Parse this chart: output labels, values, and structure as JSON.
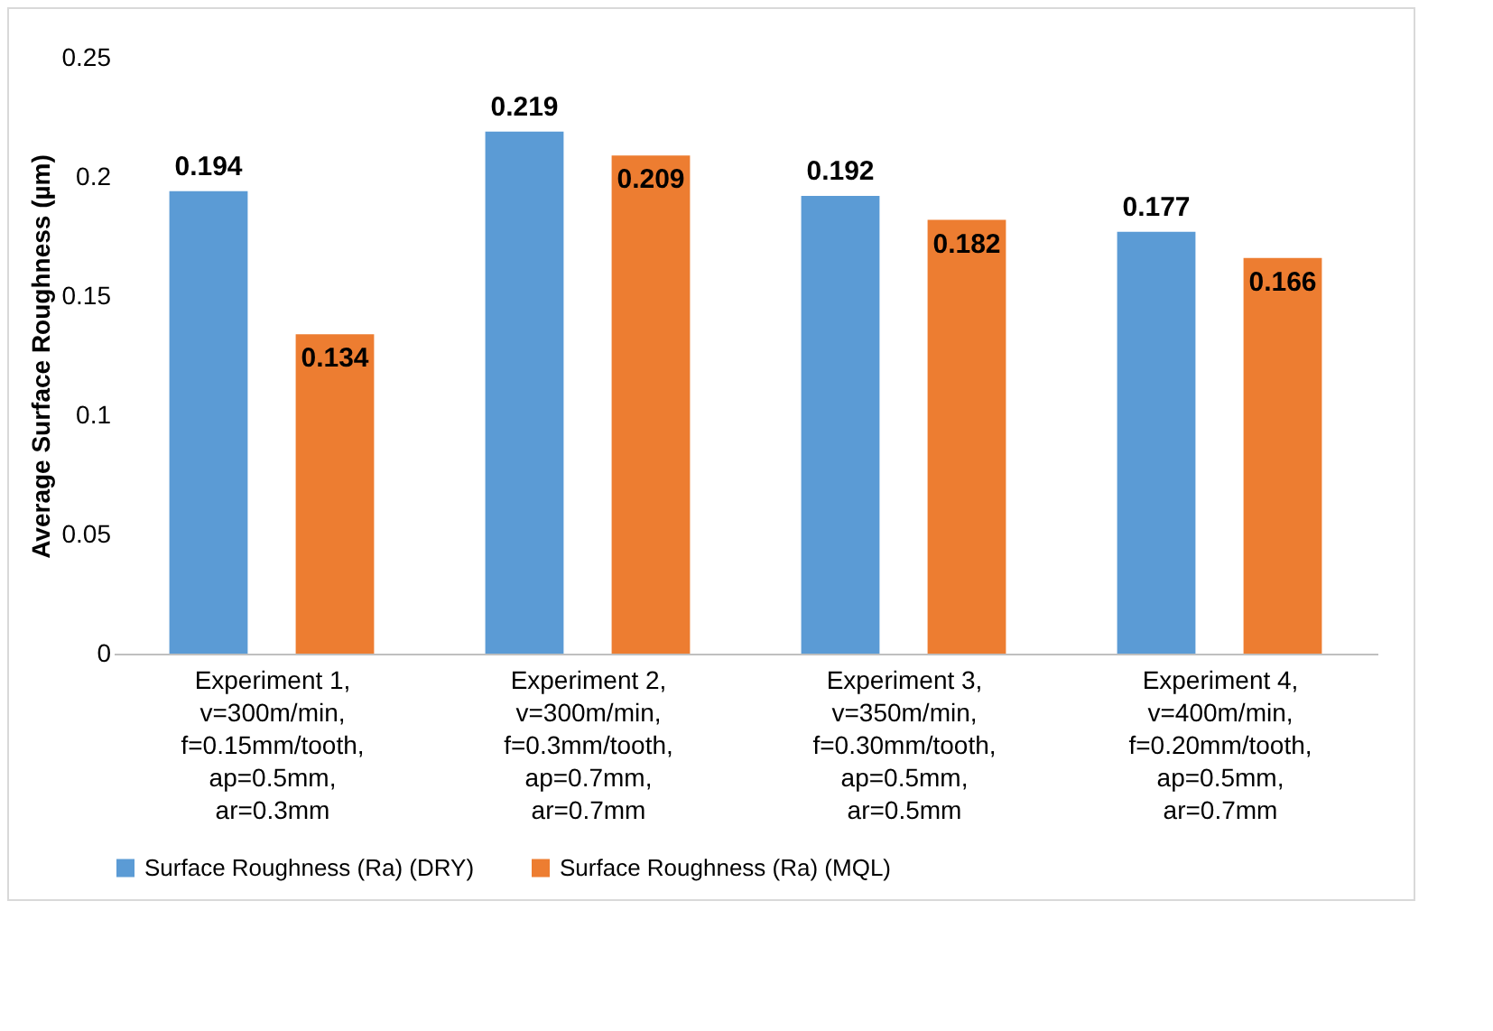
{
  "chart_data": {
    "type": "bar",
    "ylabel": "Average Surface Roughness (µm)",
    "categories": [
      "Experiment 1, v=300m/min, f=0.15mm/tooth, ap=0.5mm, ar=0.3mm",
      "Experiment 2, v=300m/min, f=0.3mm/tooth, ap=0.7mm, ar=0.7mm",
      "Experiment 3, v=350m/min, f=0.30mm/tooth, ap=0.5mm, ar=0.5mm",
      "Experiment 4, v=400m/min, f=0.20mm/tooth, ap=0.5mm, ar=0.7mm"
    ],
    "series": [
      {
        "name": "Surface Roughness (Ra) (DRY)",
        "color": "#5b9bd5",
        "values": [
          0.194,
          0.219,
          0.192,
          0.177
        ]
      },
      {
        "name": "Surface Roughness (Ra) (MQL)",
        "color": "#ed7d31",
        "values": [
          0.134,
          0.209,
          0.182,
          0.166
        ]
      }
    ],
    "ylim": [
      0,
      0.25
    ],
    "yticks": [
      0,
      0.05,
      0.1,
      0.15,
      0.2,
      0.25
    ],
    "grid": false,
    "legend": "bottom",
    "data_labels": true
  }
}
